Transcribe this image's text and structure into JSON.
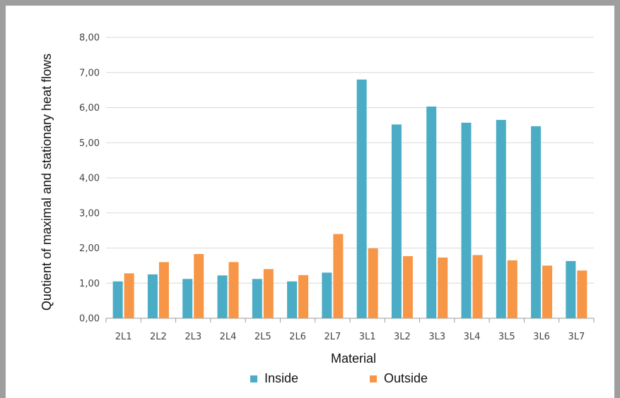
{
  "chart_data": {
    "type": "bar",
    "categories": [
      "2L1",
      "2L2",
      "2L3",
      "2L4",
      "2L5",
      "2L6",
      "2L7",
      "3L1",
      "3L2",
      "3L3",
      "3L4",
      "3L5",
      "3L6",
      "3L7"
    ],
    "series": [
      {
        "name": "Inside",
        "color": "#4aacc5",
        "values": [
          1.05,
          1.25,
          1.12,
          1.22,
          1.12,
          1.05,
          1.3,
          6.8,
          5.52,
          6.03,
          5.57,
          5.65,
          5.47,
          1.63
        ]
      },
      {
        "name": "Outside",
        "color": "#f79646",
        "values": [
          1.28,
          1.6,
          1.83,
          1.6,
          1.4,
          1.23,
          2.4,
          1.99,
          1.77,
          1.73,
          1.8,
          1.65,
          1.5,
          1.36
        ]
      }
    ],
    "xlabel": "Material",
    "ylabel": "Quotient of maximal and stationary heat flows",
    "ylim": [
      0,
      8
    ],
    "yticks": [
      "0,00",
      "1,00",
      "2,00",
      "3,00",
      "4,00",
      "5,00",
      "6,00",
      "7,00",
      "8,00"
    ],
    "grid": true,
    "legend_position": "bottom"
  }
}
